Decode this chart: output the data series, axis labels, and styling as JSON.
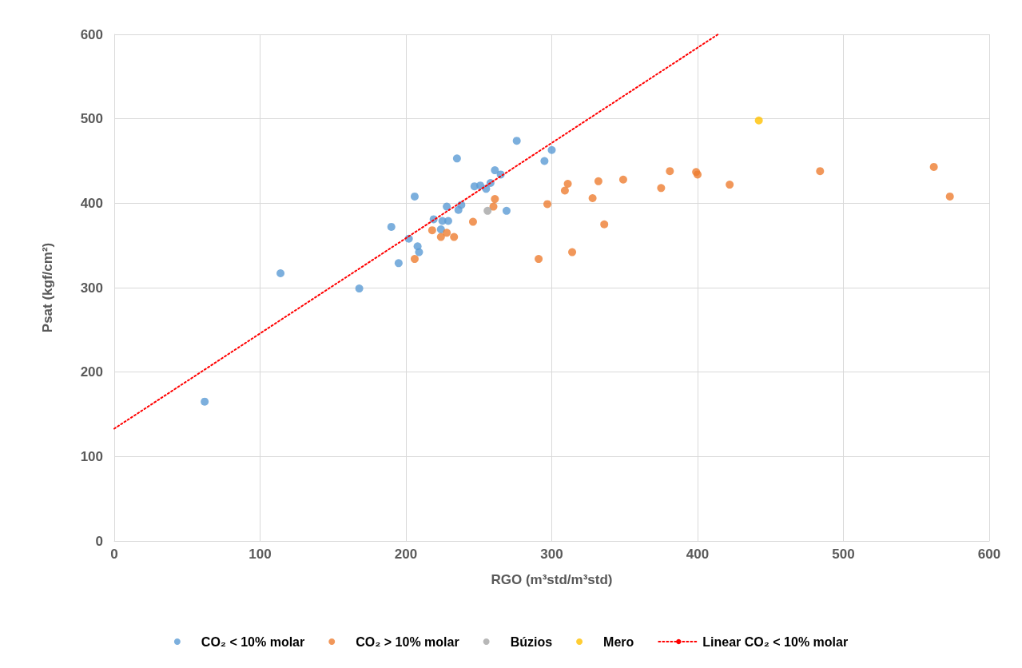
{
  "chart_data": {
    "type": "scatter",
    "xlabel": "RGO (m³std/m³std)",
    "ylabel": "Psat (kgf/cm²)",
    "xlim": [
      0,
      600
    ],
    "xticks": [
      0,
      100,
      200,
      300,
      400,
      500,
      600
    ],
    "ylim": [
      0,
      600
    ],
    "yticks": [
      0,
      100,
      200,
      300,
      400,
      500,
      600
    ],
    "grid": true,
    "legend": "bottom",
    "marker": "circle",
    "series": [
      {
        "name": "CO₂ < 10% molar",
        "color": "#5b9bd5",
        "x": [
          62,
          114,
          168,
          190,
          195,
          202,
          206,
          208,
          209,
          219,
          224,
          225,
          228,
          229,
          235,
          236,
          238,
          247,
          251,
          255,
          258,
          261,
          265,
          269,
          276,
          295,
          300
        ],
        "values": [
          165,
          317,
          299,
          372,
          329,
          358,
          408,
          349,
          342,
          381,
          369,
          379,
          396,
          379,
          453,
          392,
          398,
          420,
          421,
          417,
          424,
          439,
          434,
          391,
          474,
          450,
          463
        ]
      },
      {
        "name": "CO₂ > 10% molar",
        "color": "#ed7d31",
        "x": [
          206,
          218,
          224,
          228,
          233,
          246,
          260,
          261,
          291,
          297,
          309,
          311,
          314,
          328,
          332,
          336,
          349,
          375,
          381,
          399,
          400,
          422,
          484,
          562,
          573
        ],
        "values": [
          334,
          368,
          360,
          365,
          360,
          378,
          396,
          405,
          334,
          399,
          415,
          423,
          342,
          406,
          426,
          375,
          428,
          418,
          438,
          437,
          434,
          422,
          438,
          443,
          408
        ]
      },
      {
        "name": "Búzios",
        "color": "#a5a5a5",
        "x": [
          256
        ],
        "values": [
          391
        ]
      },
      {
        "name": "Mero",
        "color": "#ffc000",
        "x": [
          442
        ],
        "values": [
          498
        ]
      },
      {
        "name": "Linear CO₂ < 10% molar",
        "type": "line",
        "color": "#ff0000",
        "line_style": "dotted",
        "marker": "none",
        "x": [
          0,
          414
        ],
        "values": [
          133,
          600
        ]
      }
    ]
  }
}
